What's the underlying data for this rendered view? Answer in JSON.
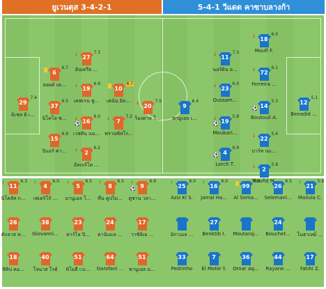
{
  "header": {
    "home_title": "ยูเวนตุส 3-4-2-1",
    "away_title": "5-4-1 วีแดด คาซาบลางก้า"
  },
  "colors": {
    "home": "#e0662a",
    "away": "#1a74c9",
    "pitch": "#8cc66a"
  },
  "home_starters": [
    {
      "num": "29",
      "name": "มิเชล ดิ เ...",
      "rating": "7.4"
    },
    {
      "num": "6",
      "name": "ลอยด์ เค...",
      "rating": "6.7"
    },
    {
      "num": "37",
      "name": "นิโคโล ซ...",
      "rating": "6.5"
    },
    {
      "num": "15",
      "name": "ปิแอร์ คา...",
      "rating": "6.9"
    },
    {
      "num": "27",
      "name": "อันเดรีย ...",
      "rating": "7.3"
    },
    {
      "num": "19",
      "name": "เคฟเรน ทู...",
      "rating": "6.9"
    },
    {
      "num": "16",
      "name": "เวสตัน แม...",
      "rating": "6.0"
    },
    {
      "num": "2",
      "name": "อัลเบร์โต ...",
      "rating": "6.2"
    },
    {
      "num": "10",
      "name": "เคนัน ยิล...",
      "rating": "8.7"
    },
    {
      "num": "7",
      "name": "ฟรานซิสโก...",
      "rating": "7.2"
    },
    {
      "num": "20",
      "name": "ร็องดาล โ...",
      "rating": "7.5"
    }
  ],
  "away_starters": [
    {
      "num": "12",
      "name": "Benadid ...",
      "rating": "5.1"
    },
    {
      "num": "18",
      "name": "Moufi F.",
      "rating": "6.0"
    },
    {
      "num": "11",
      "name": "นอร์ดิน อ...",
      "rating": "7.3"
    },
    {
      "num": "23",
      "name": "Oussam...",
      "rating": "6.0"
    },
    {
      "num": "19",
      "name": "Moubari...",
      "rating": "5.8"
    },
    {
      "num": "4",
      "name": "Lorch T.",
      "rating": "6.9"
    },
    {
      "num": "72",
      "name": "Ferreira ...",
      "rating": "6.1"
    },
    {
      "num": "14",
      "name": "Boutouil A.",
      "rating": "5.3"
    },
    {
      "num": "22",
      "name": "บาร์ท เมเ...",
      "rating": "5.4"
    },
    {
      "num": "2",
      "name": "Moufid M.",
      "rating": "5.9"
    },
    {
      "num": "9",
      "name": "ซามูเอล เ...",
      "rating": "6.4"
    }
  ],
  "home_subs": [
    {
      "num": "11",
      "name": "นิโคลัส ก...",
      "rating": "6.3"
    },
    {
      "num": "4",
      "name": "เฟเดริโก้ ...",
      "rating": "6.0"
    },
    {
      "num": "5",
      "name": "มานูเอล โ...",
      "rating": "6.5"
    },
    {
      "num": "8",
      "name": "ทึน คูปไม...",
      "rating": "6.5"
    },
    {
      "num": "9",
      "name": "ดูซาน วลา...",
      "rating": "6.9"
    },
    {
      "num": "26",
      "name": "ดักลาส ห...",
      "rating": ""
    },
    {
      "num": "38",
      "name": "Giovanni...",
      "rating": ""
    },
    {
      "num": "23",
      "name": "คาร์โล ปิ...",
      "rating": ""
    },
    {
      "num": "24",
      "name": "ดานิเอเล ...",
      "rating": ""
    },
    {
      "num": "17",
      "name": "วาซิลิเย ...",
      "rating": ""
    },
    {
      "num": "18",
      "name": "ฟิลิป คอ...",
      "rating": ""
    },
    {
      "num": "40",
      "name": "โจนาส โรฮ์",
      "rating": ""
    },
    {
      "num": "51",
      "name": "ทิโมธี เวเ...",
      "rating": ""
    },
    {
      "num": "64",
      "name": "Garofani ...",
      "rating": ""
    },
    {
      "num": "51",
      "name": "ซามูเอล ม...",
      "rating": ""
    }
  ],
  "away_subs": [
    {
      "num": "25",
      "name": "Aziz Ki S.",
      "rating": "6.0"
    },
    {
      "num": "16",
      "name": "Jamal Ha...",
      "rating": "6.0"
    },
    {
      "num": "99",
      "name": "Al Soma...",
      "rating": "5.9"
    },
    {
      "num": "26",
      "name": "Selemani...",
      "rating": "6.5"
    },
    {
      "num": "21",
      "name": "Mailula C.",
      "rating": "5.9"
    },
    {
      "num": "",
      "name": "มิกาเอล ...",
      "rating": ""
    },
    {
      "num": "27",
      "name": "Benktib I.",
      "rating": ""
    },
    {
      "num": "",
      "name": "Moutaraj...",
      "rating": ""
    },
    {
      "num": "24",
      "name": "Bouchet...",
      "rating": ""
    },
    {
      "num": "",
      "name": "โนฮาเหม็ ...",
      "rating": ""
    },
    {
      "num": "33",
      "name": "Pedrinho",
      "rating": ""
    },
    {
      "num": "7",
      "name": "El Motie Y.",
      "rating": ""
    },
    {
      "num": "36",
      "name": "Omar Aq...",
      "rating": ""
    },
    {
      "num": "44",
      "name": "Rayane ...",
      "rating": ""
    },
    {
      "num": "17",
      "name": "Fatihi Z.",
      "rating": ""
    }
  ]
}
